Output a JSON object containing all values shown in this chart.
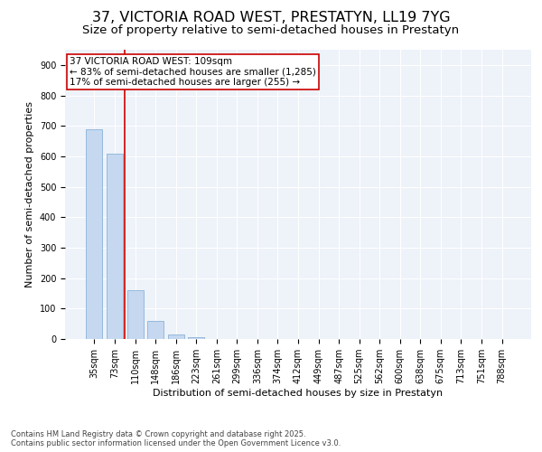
{
  "title_line1": "37, VICTORIA ROAD WEST, PRESTATYN, LL19 7YG",
  "title_line2": "Size of property relative to semi-detached houses in Prestatyn",
  "xlabel": "Distribution of semi-detached houses by size in Prestatyn",
  "ylabel": "Number of semi-detached properties",
  "categories": [
    "35sqm",
    "73sqm",
    "110sqm",
    "148sqm",
    "186sqm",
    "223sqm",
    "261sqm",
    "299sqm",
    "336sqm",
    "374sqm",
    "412sqm",
    "449sqm",
    "487sqm",
    "525sqm",
    "562sqm",
    "600sqm",
    "638sqm",
    "675sqm",
    "713sqm",
    "751sqm",
    "788sqm"
  ],
  "values": [
    690,
    610,
    160,
    60,
    15,
    5,
    0,
    0,
    0,
    0,
    0,
    0,
    0,
    0,
    0,
    0,
    0,
    0,
    0,
    0,
    0
  ],
  "bar_color": "#c5d8f0",
  "bar_edge_color": "#8ab4d8",
  "vline_x_index": 2,
  "vline_color": "#cc0000",
  "annotation_text": "37 VICTORIA ROAD WEST: 109sqm\n← 83% of semi-detached houses are smaller (1,285)\n17% of semi-detached houses are larger (255) →",
  "annotation_box_color": "#cc0000",
  "ylim": [
    0,
    950
  ],
  "yticks": [
    0,
    100,
    200,
    300,
    400,
    500,
    600,
    700,
    800,
    900
  ],
  "background_color": "#eef2f9",
  "grid_color": "#ffffff",
  "footer_text": "Contains HM Land Registry data © Crown copyright and database right 2025.\nContains public sector information licensed under the Open Government Licence v3.0.",
  "title_fontsize": 11.5,
  "subtitle_fontsize": 9.5,
  "axis_label_fontsize": 8,
  "tick_fontsize": 7,
  "annotation_fontsize": 7.5,
  "footer_fontsize": 6
}
